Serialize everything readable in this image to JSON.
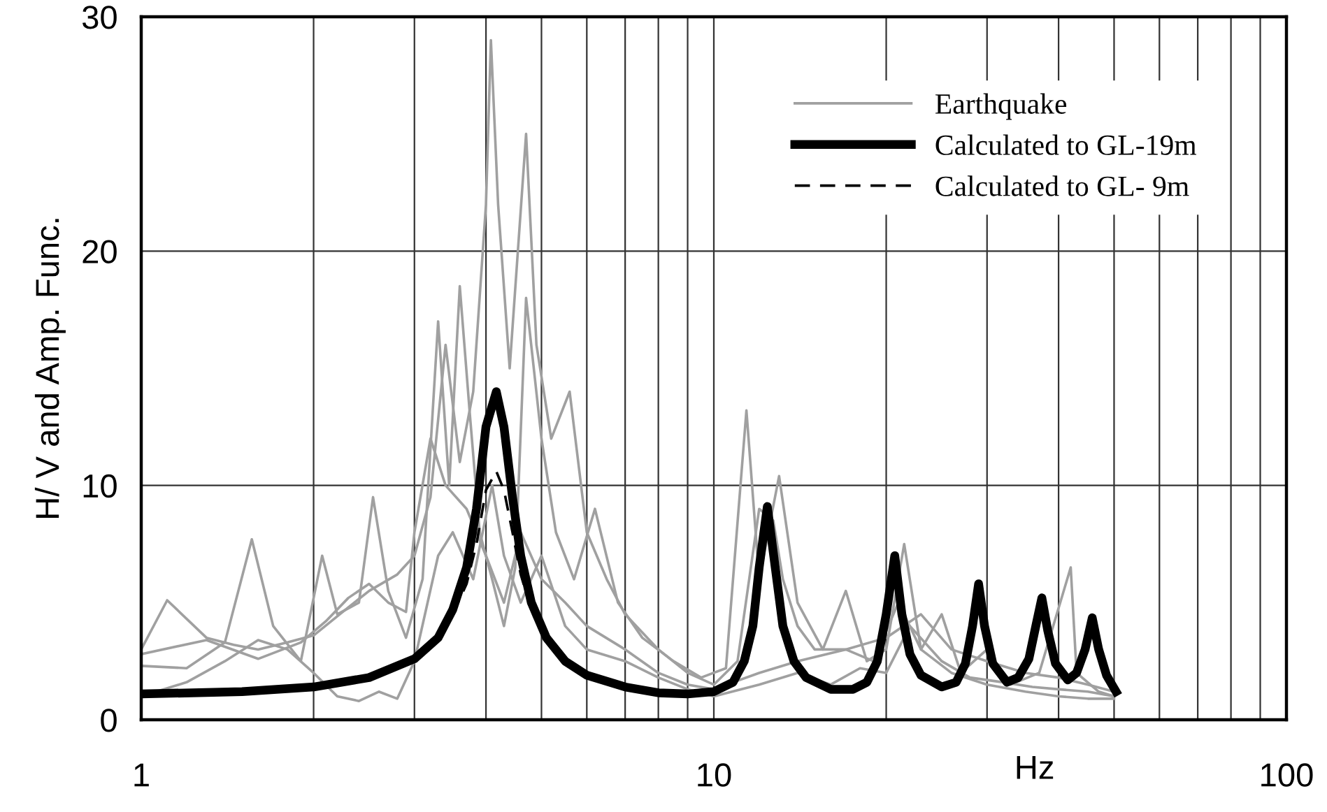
{
  "chart_data": {
    "type": "line",
    "xlabel": "Hz",
    "ylabel": "H/ V and Amp. Func.",
    "log": "x",
    "xlim": [
      1,
      100
    ],
    "ylim": [
      0,
      30
    ],
    "yticks": [
      0,
      10,
      20,
      30
    ],
    "xticks": [
      1,
      {
        "value": 2,
        "label": null
      },
      {
        "value": 3,
        "label": null
      },
      {
        "value": 4,
        "label": null
      },
      {
        "value": 5,
        "label": null
      },
      {
        "value": 6,
        "label": null
      },
      {
        "value": 7,
        "label": null
      },
      {
        "value": 8,
        "label": null
      },
      {
        "value": 9,
        "label": null
      },
      10,
      {
        "value": 20,
        "label": null
      },
      {
        "value": 30,
        "label": null
      },
      {
        "value": 40,
        "label": null
      },
      {
        "value": 50,
        "label": null
      },
      {
        "value": 60,
        "label": null
      },
      {
        "value": 70,
        "label": null
      },
      {
        "value": 80,
        "label": null
      },
      {
        "value": 90,
        "label": null
      },
      100
    ],
    "grid": true,
    "legend": "top right",
    "marker": "none",
    "series": [
      {
        "name": "Earthquake",
        "color": "#a0a0a0",
        "x": [
          1.0,
          1.11,
          1.3,
          1.45,
          1.6,
          1.8,
          2.0,
          2.3,
          2.5,
          2.8,
          3.0,
          3.2,
          3.4,
          3.6,
          3.8,
          4.0,
          4.08,
          4.2,
          4.4,
          4.7,
          4.9,
          5.2,
          5.6,
          6.0,
          6.5,
          7.0,
          8.0,
          9.0,
          10.0,
          11.0,
          12.0,
          12.7,
          13.2,
          14.0,
          15.0,
          17.0,
          19.0,
          21.0,
          23.0,
          26.0,
          30.0,
          35.0,
          40.0,
          45.0,
          50.0
        ],
        "values": [
          3.0,
          5.1,
          3.5,
          3.2,
          3.0,
          3.3,
          3.6,
          4.8,
          5.5,
          6.2,
          7.0,
          9.5,
          16.0,
          11.0,
          14.0,
          22.0,
          29.0,
          22.0,
          15.0,
          25.0,
          16.0,
          12.0,
          14.0,
          8.0,
          6.0,
          4.5,
          3.0,
          2.0,
          1.5,
          2.5,
          9.0,
          8.5,
          6.0,
          4.0,
          3.0,
          3.0,
          2.5,
          5.0,
          3.0,
          2.0,
          1.5,
          1.2,
          1.0,
          0.9,
          0.9
        ]
      },
      {
        "color": "#a0a0a0",
        "x": [
          1.0,
          1.2,
          1.4,
          1.56,
          1.7,
          1.9,
          2.07,
          2.2,
          2.4,
          2.54,
          2.7,
          2.9,
          3.1,
          3.3,
          3.45,
          3.6,
          3.75,
          3.9,
          4.1,
          4.3,
          4.5,
          4.7,
          5.0,
          5.3,
          5.7,
          6.2,
          6.8,
          7.5,
          8.5,
          9.5,
          10.5,
          11.4,
          12.0,
          13.0,
          14.0,
          15.5,
          17.0,
          18.5,
          20.0,
          21.5,
          23.0,
          25.0,
          27.0,
          30.0,
          33.0,
          37.0,
          42.0,
          43.0,
          47.0,
          50.0
        ],
        "values": [
          2.3,
          2.2,
          3.3,
          7.7,
          4.0,
          2.5,
          7.0,
          4.5,
          5.0,
          9.5,
          5.5,
          3.5,
          6.0,
          17.0,
          10.0,
          18.5,
          13.0,
          8.0,
          6.0,
          4.0,
          6.5,
          18.0,
          12.0,
          8.0,
          6.0,
          9.0,
          5.0,
          3.5,
          2.5,
          1.8,
          2.2,
          13.2,
          6.0,
          10.4,
          5.0,
          3.0,
          5.5,
          2.5,
          3.0,
          7.5,
          3.0,
          4.5,
          2.0,
          3.0,
          1.5,
          2.0,
          6.5,
          2.0,
          1.2,
          1.0
        ]
      },
      {
        "color": "#a0a0a0",
        "x": [
          1.0,
          1.2,
          1.4,
          1.6,
          1.8,
          2.0,
          2.2,
          2.4,
          2.6,
          2.8,
          3.0,
          3.3,
          3.5,
          3.8,
          4.1,
          4.3,
          4.6,
          5.0,
          5.5,
          6.0,
          7.0,
          8.0,
          9.0,
          10.0,
          12.0,
          14.0,
          16.0,
          18.0,
          20.0,
          22.0,
          25.0,
          28.0,
          32.0,
          36.0,
          40.0,
          45.0,
          50.0
        ],
        "values": [
          1.0,
          1.6,
          2.5,
          3.4,
          3.0,
          2.0,
          1.0,
          0.8,
          1.2,
          0.9,
          2.5,
          7.0,
          8.0,
          6.0,
          10.0,
          7.0,
          5.0,
          7.0,
          4.0,
          3.0,
          2.5,
          1.8,
          1.3,
          1.0,
          1.5,
          2.0,
          1.5,
          2.2,
          2.0,
          4.0,
          2.5,
          1.8,
          1.6,
          1.4,
          1.3,
          1.2,
          1.0
        ]
      },
      {
        "color": "#a0a0a0",
        "x": [
          1.0,
          1.3,
          1.6,
          1.9,
          2.1,
          2.3,
          2.5,
          2.7,
          2.9,
          3.0,
          3.2,
          3.4,
          3.7,
          4.0,
          4.3,
          4.6,
          5.0,
          5.5,
          6.0,
          7.0,
          8.0,
          9.0,
          10.0,
          12.0,
          14.0,
          17.0,
          20.0,
          23.0,
          26.0,
          30.0,
          35.0,
          40.0,
          45.0,
          50.0
        ],
        "values": [
          2.8,
          3.4,
          2.6,
          3.3,
          4.2,
          5.2,
          5.8,
          5.0,
          4.6,
          8.0,
          12.0,
          10.0,
          9.0,
          7.0,
          5.0,
          8.0,
          6.0,
          5.0,
          4.0,
          3.0,
          2.0,
          1.5,
          1.3,
          2.0,
          2.5,
          3.0,
          3.5,
          4.5,
          3.0,
          2.5,
          2.0,
          1.8,
          1.5,
          1.2
        ]
      },
      {
        "name": "Calculated to GL-19m",
        "color": "#000000",
        "x": [
          1.0,
          1.5,
          2.0,
          2.5,
          3.0,
          3.3,
          3.5,
          3.7,
          3.85,
          4.0,
          4.17,
          4.3,
          4.45,
          4.6,
          4.8,
          5.1,
          5.5,
          6.0,
          7.0,
          8.0,
          9.0,
          10.0,
          10.8,
          11.3,
          11.7,
          12.0,
          12.4,
          12.8,
          13.2,
          13.8,
          14.5,
          16.0,
          17.5,
          18.5,
          19.3,
          20.0,
          20.7,
          21.3,
          22.0,
          23.0,
          25.0,
          26.5,
          27.5,
          28.3,
          29.0,
          29.7,
          30.7,
          32.5,
          34.0,
          35.5,
          36.5,
          37.4,
          38.3,
          39.5,
          41.5,
          43.0,
          44.5,
          45.8,
          47.0,
          48.5,
          50.4
        ],
        "values": [
          1.1,
          1.2,
          1.4,
          1.8,
          2.6,
          3.5,
          4.7,
          6.5,
          9.0,
          12.5,
          14.0,
          12.5,
          9.5,
          7.0,
          5.0,
          3.5,
          2.5,
          1.9,
          1.4,
          1.15,
          1.1,
          1.2,
          1.6,
          2.5,
          4.0,
          6.5,
          9.1,
          6.5,
          4.0,
          2.5,
          1.8,
          1.3,
          1.3,
          1.6,
          2.5,
          4.5,
          7.0,
          4.5,
          2.8,
          1.9,
          1.4,
          1.6,
          2.4,
          4.0,
          5.8,
          4.0,
          2.4,
          1.6,
          1.8,
          2.6,
          4.0,
          5.2,
          3.8,
          2.4,
          1.7,
          2.0,
          3.0,
          4.35,
          3.0,
          1.9,
          1.2
        ]
      },
      {
        "name": "Calculated to GL- 9m",
        "color": "#000000",
        "line_style": "dashed",
        "x": [
          3.5,
          3.7,
          3.85,
          4.0,
          4.17,
          4.3,
          4.45,
          4.6,
          4.8
        ],
        "values": [
          4.5,
          5.8,
          7.5,
          9.8,
          10.6,
          9.8,
          8.0,
          6.2,
          4.7
        ]
      }
    ]
  }
}
